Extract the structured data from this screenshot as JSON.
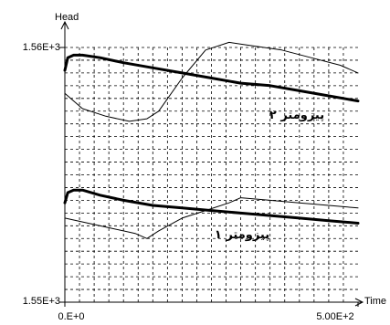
{
  "chart_data": {
    "type": "line",
    "xlabel": "Time",
    "ylabel": "Head",
    "xlim": [
      0,
      500
    ],
    "ylim": [
      1550,
      1560
    ],
    "x_tick_labels": [
      "0.E+0",
      "5.00E+2"
    ],
    "y_tick_labels": [
      "1.56E+3",
      "1.55E+3"
    ],
    "grid": true,
    "annotations": [
      "پیزومتر ۲",
      "پیزومتر ۱"
    ],
    "series": [
      {
        "label_index": 0,
        "style": "thick",
        "x": [
          0,
          5,
          15,
          30,
          60,
          100,
          150,
          200,
          250,
          300,
          350,
          400,
          450,
          500
        ],
        "y": [
          1559.1,
          1559.6,
          1559.7,
          1559.7,
          1559.6,
          1559.4,
          1559.2,
          1559.0,
          1558.8,
          1558.6,
          1558.5,
          1558.3,
          1558.1,
          1557.9
        ]
      },
      {
        "label_index": 0,
        "style": "thin",
        "x": [
          0,
          30,
          70,
          110,
          140,
          160,
          200,
          240,
          280,
          310,
          370,
          420,
          470,
          500
        ],
        "y": [
          1558.2,
          1557.6,
          1557.3,
          1557.1,
          1557.2,
          1557.5,
          1558.8,
          1559.9,
          1560.2,
          1560.1,
          1559.9,
          1559.6,
          1559.3,
          1559.0
        ]
      },
      {
        "label_index": 1,
        "style": "thick",
        "x": [
          0,
          5,
          15,
          30,
          60,
          100,
          150,
          200,
          250,
          300,
          350,
          400,
          450,
          500
        ],
        "y": [
          1553.9,
          1554.3,
          1554.4,
          1554.4,
          1554.2,
          1554.0,
          1553.8,
          1553.7,
          1553.6,
          1553.5,
          1553.4,
          1553.3,
          1553.2,
          1553.1
        ]
      },
      {
        "label_index": 1,
        "style": "thin",
        "x": [
          0,
          40,
          80,
          120,
          140,
          160,
          200,
          240,
          280,
          300,
          350,
          400,
          450,
          500
        ],
        "y": [
          1553.3,
          1553.1,
          1552.9,
          1552.7,
          1552.5,
          1552.8,
          1553.3,
          1553.6,
          1553.9,
          1554.1,
          1554.0,
          1553.9,
          1553.8,
          1553.7
        ]
      }
    ]
  }
}
